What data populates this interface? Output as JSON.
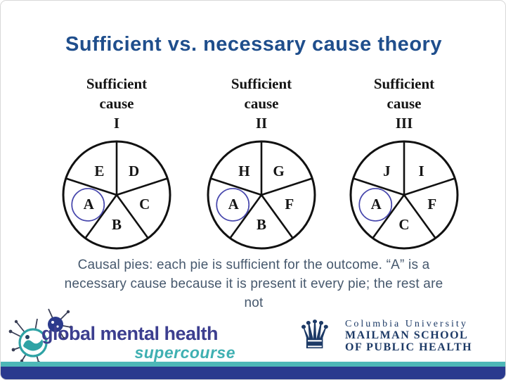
{
  "title": "Sufficient vs. necessary cause theory",
  "pies": [
    {
      "heading": [
        "Sufficient",
        "cause"
      ],
      "numeral": "I",
      "segments_clockwise_from_top": [
        "D",
        "C",
        "B",
        "A",
        "E"
      ],
      "circled_segment": "A"
    },
    {
      "heading": [
        "Sufficient",
        "cause"
      ],
      "numeral": "II",
      "segments_clockwise_from_top": [
        "G",
        "F",
        "B",
        "A",
        "H"
      ],
      "circled_segment": "A"
    },
    {
      "heading": [
        "Sufficient",
        "cause"
      ],
      "numeral": "III",
      "segments_clockwise_from_top": [
        "I",
        "F",
        "C",
        "A",
        "J"
      ],
      "circled_segment": "A"
    }
  ],
  "caption_lines": [
    "Causal pies: each pie is sufficient for the outcome. “A” is a",
    "necessary cause because it is present it every pie; the rest are",
    "not"
  ],
  "footer": {
    "supercourse": {
      "line1": "global mental health",
      "line2": "supercourse"
    },
    "columbia": {
      "line1": "Columbia University",
      "line2": "MAILMAN SCHOOL",
      "line3": "OF PUBLIC HEALTH",
      "crown_glyph": "♛"
    }
  },
  "colors": {
    "title_blue": "#1f4e8c",
    "caption_slate": "#46586d",
    "gmh_indigo": "#3c3e8f",
    "supercourse_teal": "#3fb0b2",
    "teal_stripe": "#4db7b7",
    "navy_bar": "#2a3a8e",
    "columbia_navy": "#1d3a66",
    "circle_highlight_blue": "#4646ac",
    "pie_outline": "#111111"
  }
}
